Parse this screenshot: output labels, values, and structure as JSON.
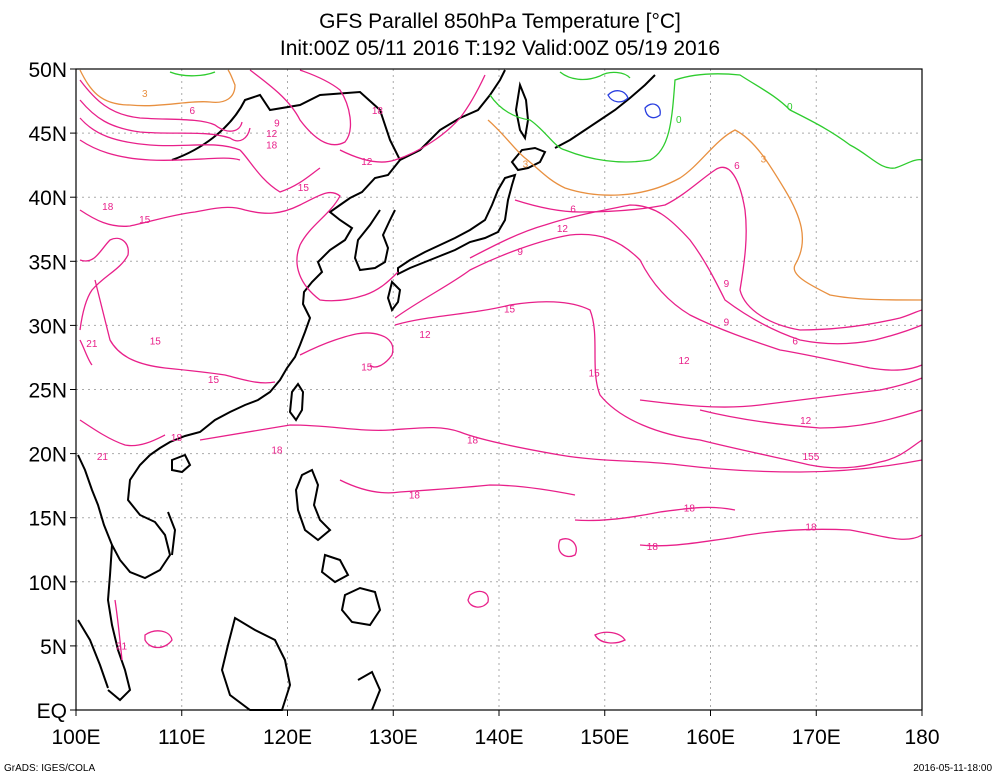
{
  "title": {
    "line1": "GFS Parallel 850hPa Temperature [°C]",
    "line2": "Init:00Z 05/11 2016 T:192 Valid:00Z 05/19 2016"
  },
  "map": {
    "lon_range": [
      100,
      180
    ],
    "lat_range": [
      0,
      50
    ],
    "lon_ticks": [
      "100E",
      "110E",
      "120E",
      "130E",
      "140E",
      "150E",
      "160E",
      "170E",
      "180"
    ],
    "lat_ticks": [
      "EQ",
      "5N",
      "10N",
      "15N",
      "20N",
      "25N",
      "30N",
      "35N",
      "40N",
      "45N",
      "50N"
    ],
    "grid": "dotted"
  },
  "contours": {
    "colors": {
      "0": "#2ecc2e",
      "3": "#e89040",
      "6-21": "#e8208a",
      "negative": "#2a3fe0",
      "coast": "#000000"
    },
    "labels": [
      {
        "text": "3",
        "lon": 106.5,
        "lat": 47.8
      },
      {
        "text": "6",
        "lon": 111.0,
        "lat": 46.5
      },
      {
        "text": "9",
        "lon": 119.0,
        "lat": 45.5
      },
      {
        "text": "12",
        "lon": 118.5,
        "lat": 44.7
      },
      {
        "text": "18",
        "lon": 118.5,
        "lat": 43.8
      },
      {
        "text": "18",
        "lon": 128.5,
        "lat": 46.5
      },
      {
        "text": "12",
        "lon": 127.5,
        "lat": 42.5
      },
      {
        "text": "15",
        "lon": 121.5,
        "lat": 40.5
      },
      {
        "text": "18",
        "lon": 103.0,
        "lat": 39.0
      },
      {
        "text": "15",
        "lon": 106.5,
        "lat": 38.0
      },
      {
        "text": "15",
        "lon": 107.5,
        "lat": 28.5
      },
      {
        "text": "21",
        "lon": 101.5,
        "lat": 28.3
      },
      {
        "text": "15",
        "lon": 113.0,
        "lat": 25.5
      },
      {
        "text": "18",
        "lon": 109.5,
        "lat": 21.0
      },
      {
        "text": "21",
        "lon": 102.5,
        "lat": 19.5
      },
      {
        "text": "18",
        "lon": 119.0,
        "lat": 20.0
      },
      {
        "text": "15",
        "lon": 127.5,
        "lat": 26.5
      },
      {
        "text": "12",
        "lon": 133.0,
        "lat": 29.0
      },
      {
        "text": "15",
        "lon": 141.0,
        "lat": 31.0
      },
      {
        "text": "15",
        "lon": 149.0,
        "lat": 26.0
      },
      {
        "text": "18",
        "lon": 137.5,
        "lat": 20.8
      },
      {
        "text": "18",
        "lon": 132.0,
        "lat": 16.5
      },
      {
        "text": "9",
        "lon": 142.0,
        "lat": 35.5
      },
      {
        "text": "12",
        "lon": 146.0,
        "lat": 37.3
      },
      {
        "text": "6",
        "lon": 147.0,
        "lat": 38.8
      },
      {
        "text": "3",
        "lon": 142.5,
        "lat": 42.3
      },
      {
        "text": "6",
        "lon": 162.5,
        "lat": 42.2
      },
      {
        "text": "3",
        "lon": 165.0,
        "lat": 42.7
      },
      {
        "text": "0",
        "lon": 157.0,
        "lat": 45.8
      },
      {
        "text": "0",
        "lon": 167.5,
        "lat": 46.8
      },
      {
        "text": "9",
        "lon": 161.5,
        "lat": 33.0
      },
      {
        "text": "9",
        "lon": 161.5,
        "lat": 30.0
      },
      {
        "text": "6",
        "lon": 168.0,
        "lat": 28.5
      },
      {
        "text": "12",
        "lon": 157.5,
        "lat": 27.0
      },
      {
        "text": "12",
        "lon": 169.0,
        "lat": 22.3
      },
      {
        "text": "155",
        "lon": 169.5,
        "lat": 19.5
      },
      {
        "text": "18",
        "lon": 158.0,
        "lat": 15.5
      },
      {
        "text": "18",
        "lon": 154.5,
        "lat": 12.5
      },
      {
        "text": "18",
        "lon": 169.5,
        "lat": 14.0
      },
      {
        "text": "21",
        "lon": 104.3,
        "lat": 4.7
      }
    ]
  },
  "footer": {
    "left": "GrADS: IGES/COLA",
    "right": "2016-05-11-18:00"
  }
}
